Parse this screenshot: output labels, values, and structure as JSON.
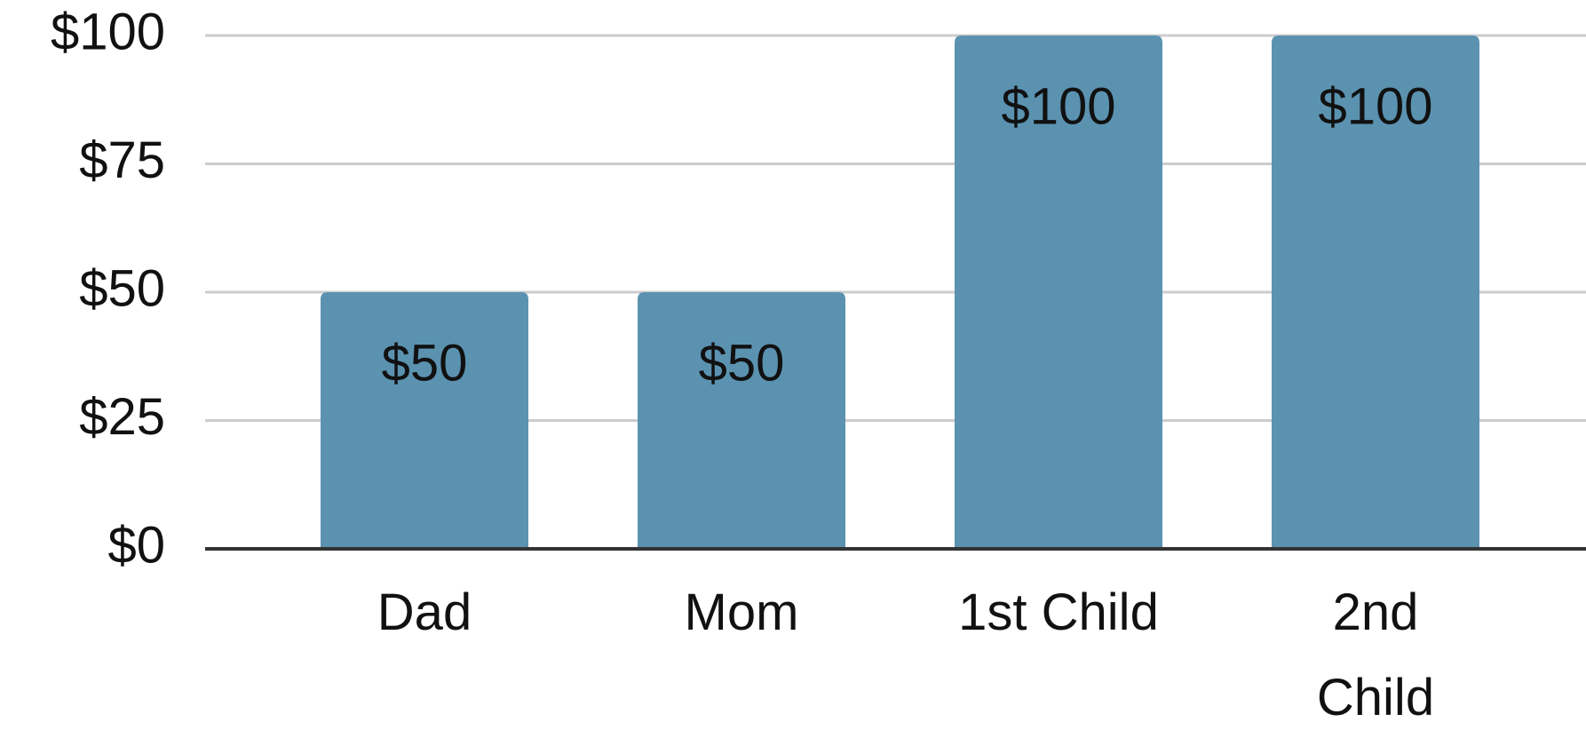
{
  "chart_data": {
    "type": "bar",
    "categories": [
      "Dad",
      "Mom",
      "1st Child",
      "2nd Child"
    ],
    "values": [
      50,
      50,
      100,
      100
    ],
    "value_labels": [
      "$50",
      "$50",
      "$100",
      "$100"
    ],
    "color": "#5b92b0",
    "ylim": [
      0,
      100
    ],
    "yticks": [
      {
        "value": 0,
        "label": "$0"
      },
      {
        "value": 25,
        "label": "$25"
      },
      {
        "value": 50,
        "label": "$50"
      },
      {
        "value": 75,
        "label": "$75"
      },
      {
        "value": 100,
        "label": "$100"
      }
    ],
    "grid": true
  }
}
